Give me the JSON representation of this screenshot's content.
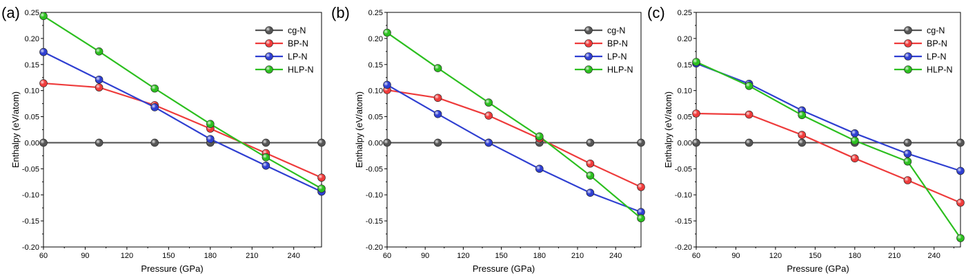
{
  "chart_data": [
    {
      "type": "line",
      "panel_label": "(a)",
      "xlabel": "Pressure (GPa)",
      "ylabel": "Enthalpy (eV/atom)",
      "xlim": [
        60,
        260
      ],
      "ylim": [
        -0.2,
        0.25
      ],
      "xticks": [
        "60",
        "90",
        "120",
        "150",
        "180",
        "210",
        "240"
      ],
      "yticks": [
        "0.25",
        "0.20",
        "0.15",
        "0.10",
        "0.05",
        "0.00",
        "-0.05",
        "-0.10",
        "-0.15",
        "-0.20"
      ],
      "legend_position": "top-right",
      "x": [
        60,
        100,
        140,
        180,
        220,
        260
      ],
      "series": [
        {
          "name": "cg-N",
          "color": "#555555",
          "values": [
            0.0,
            0.0,
            0.0,
            0.0,
            0.0,
            0.0
          ]
        },
        {
          "name": "BP-N",
          "color": "#ee3b3b",
          "values": [
            0.114,
            0.106,
            0.072,
            0.027,
            -0.02,
            -0.067
          ]
        },
        {
          "name": "LP-N",
          "color": "#2f3fd1",
          "values": [
            0.174,
            0.121,
            0.068,
            0.007,
            -0.044,
            -0.094
          ]
        },
        {
          "name": "HLP-N",
          "color": "#2cbf1f",
          "values": [
            0.243,
            0.175,
            0.104,
            0.036,
            -0.028,
            -0.088
          ]
        }
      ]
    },
    {
      "type": "line",
      "panel_label": "(b)",
      "xlabel": "Pressure (GPa)",
      "ylabel": "Enthalpy (eV/atom)",
      "xlim": [
        60,
        260
      ],
      "ylim": [
        -0.2,
        0.25
      ],
      "xticks": [
        "60",
        "90",
        "120",
        "150",
        "180",
        "210",
        "240"
      ],
      "yticks": [
        "0.25",
        "0.20",
        "0.15",
        "0.10",
        "0.05",
        "0.00",
        "-0.05",
        "-0.10",
        "-0.15",
        "-0.20"
      ],
      "legend_position": "top-right",
      "x": [
        60,
        100,
        140,
        180,
        220,
        260
      ],
      "series": [
        {
          "name": "cg-N",
          "color": "#555555",
          "values": [
            0.0,
            0.0,
            0.0,
            0.0,
            0.0,
            0.0
          ]
        },
        {
          "name": "BP-N",
          "color": "#ee3b3b",
          "values": [
            0.101,
            0.086,
            0.052,
            0.008,
            -0.04,
            -0.085
          ]
        },
        {
          "name": "LP-N",
          "color": "#2f3fd1",
          "values": [
            0.111,
            0.055,
            0.0,
            -0.05,
            -0.096,
            -0.133
          ]
        },
        {
          "name": "HLP-N",
          "color": "#2cbf1f",
          "values": [
            0.211,
            0.143,
            0.077,
            0.012,
            -0.063,
            -0.145
          ]
        }
      ]
    },
    {
      "type": "line",
      "panel_label": "(c)",
      "xlabel": "Pressure (GPa)",
      "ylabel": "Enthalpy (eV/atom)",
      "xlim": [
        60,
        260
      ],
      "ylim": [
        -0.2,
        0.25
      ],
      "xticks": [
        "60",
        "90",
        "120",
        "150",
        "180",
        "210",
        "240"
      ],
      "yticks": [
        "0.25",
        "0.20",
        "0.15",
        "0.10",
        "0.05",
        "0.00",
        "-0.05",
        "-0.10",
        "-0.15",
        "-0.20"
      ],
      "legend_position": "top-right",
      "x": [
        60,
        100,
        140,
        180,
        220,
        260
      ],
      "series": [
        {
          "name": "cg-N",
          "color": "#555555",
          "values": [
            0.0,
            0.0,
            0.0,
            0.0,
            0.0,
            0.0
          ]
        },
        {
          "name": "BP-N",
          "color": "#ee3b3b",
          "values": [
            0.056,
            0.054,
            0.015,
            -0.03,
            -0.072,
            -0.115
          ]
        },
        {
          "name": "LP-N",
          "color": "#2f3fd1",
          "values": [
            0.152,
            0.113,
            0.062,
            0.018,
            -0.021,
            -0.054
          ]
        },
        {
          "name": "HLP-N",
          "color": "#2cbf1f",
          "values": [
            0.155,
            0.109,
            0.053,
            0.004,
            -0.036,
            -0.183
          ]
        }
      ]
    }
  ]
}
